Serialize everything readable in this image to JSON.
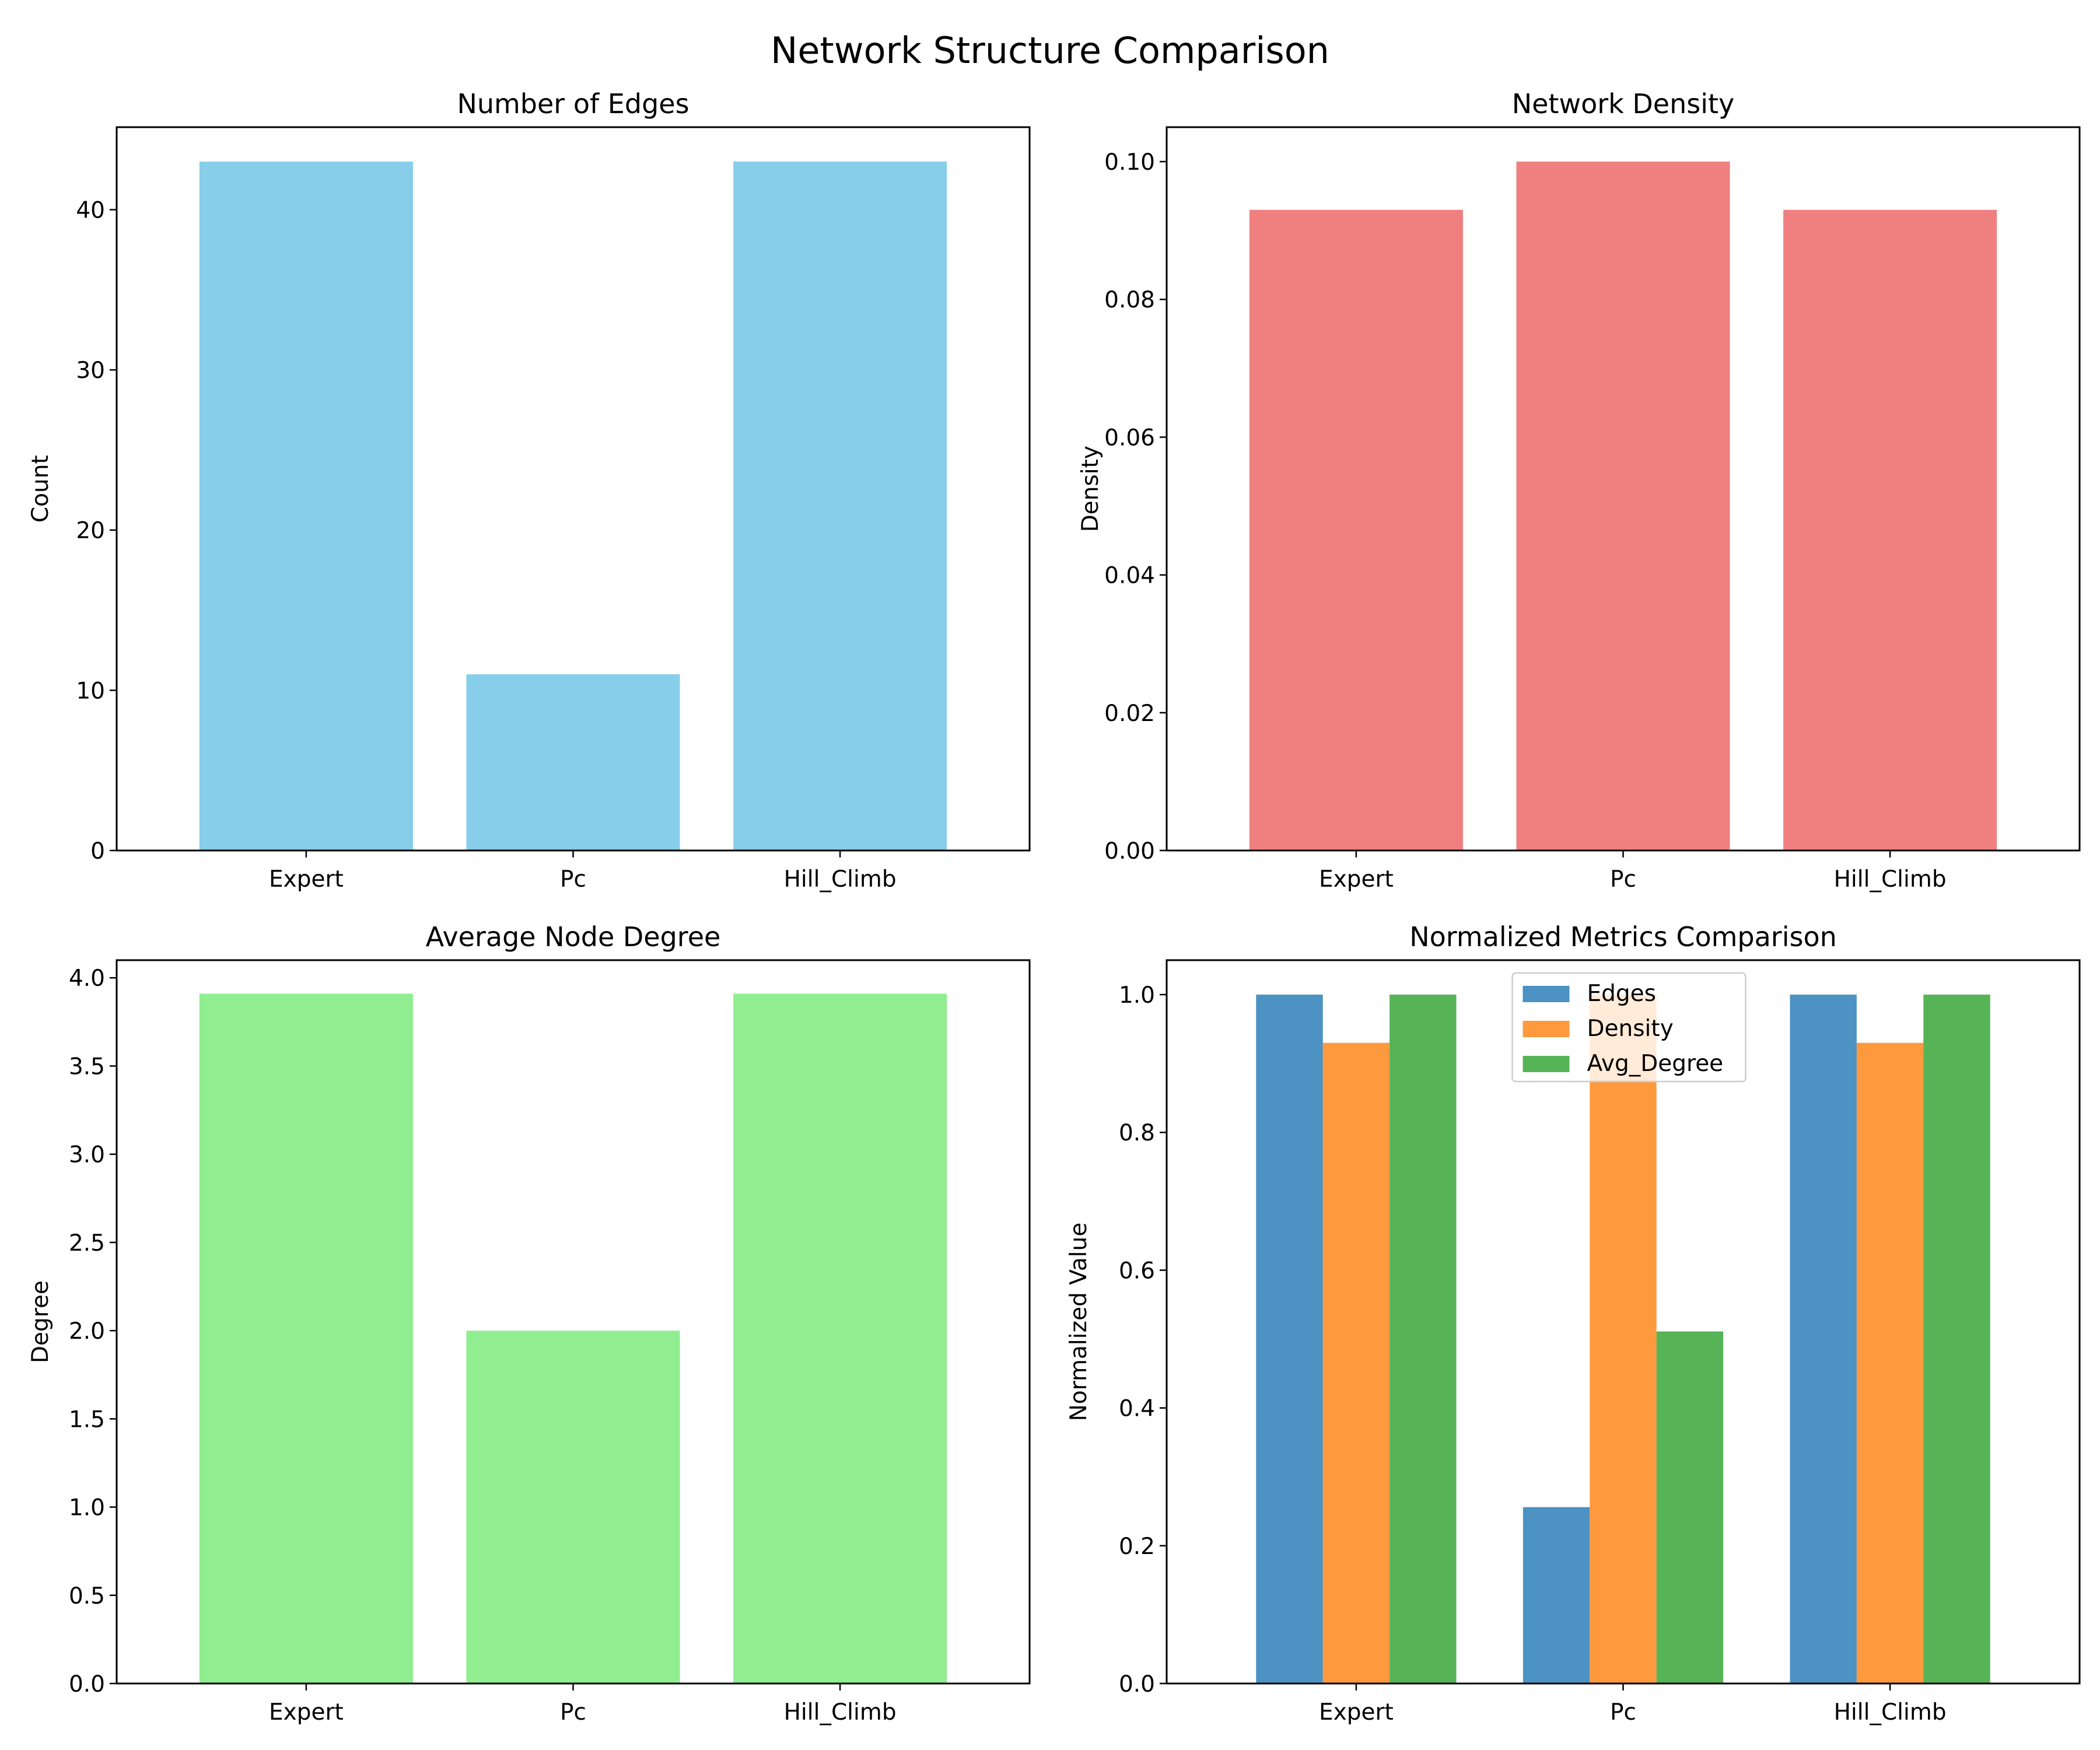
{
  "figure": {
    "title": "Network Structure Comparison"
  },
  "chart_data": [
    {
      "type": "bar",
      "title": "Number of Edges",
      "xlabel": "",
      "ylabel": "Count",
      "categories": [
        "Expert",
        "Pc",
        "Hill_Climb"
      ],
      "values": [
        43,
        11,
        43
      ],
      "ylim": [
        0,
        45.15
      ],
      "yticks": [
        0,
        10,
        20,
        30,
        40
      ],
      "ytick_labels": [
        "0",
        "10",
        "20",
        "30",
        "40"
      ],
      "color": "#87ceeb",
      "grid": false
    },
    {
      "type": "bar",
      "title": "Network Density",
      "xlabel": "",
      "ylabel": "Density",
      "categories": [
        "Expert",
        "Pc",
        "Hill_Climb"
      ],
      "values": [
        0.093,
        0.1,
        0.093
      ],
      "ylim": [
        0,
        0.105
      ],
      "yticks": [
        0,
        0.02,
        0.04,
        0.06,
        0.08,
        0.1
      ],
      "ytick_labels": [
        "0.00",
        "0.02",
        "0.04",
        "0.06",
        "0.08",
        "0.10"
      ],
      "color": "#f08080",
      "grid": false
    },
    {
      "type": "bar",
      "title": "Average Node Degree",
      "xlabel": "",
      "ylabel": "Degree",
      "categories": [
        "Expert",
        "Pc",
        "Hill_Climb"
      ],
      "values": [
        3.91,
        2.0,
        3.91
      ],
      "ylim": [
        0,
        4.1
      ],
      "yticks": [
        0,
        0.5,
        1,
        1.5,
        2,
        2.5,
        3,
        3.5,
        4
      ],
      "ytick_labels": [
        "0.0",
        "0.5",
        "1.0",
        "1.5",
        "2.0",
        "2.5",
        "3.0",
        "3.5",
        "4.0"
      ],
      "color": "#90ee90",
      "grid": false
    },
    {
      "type": "bar",
      "title": "Normalized Metrics Comparison",
      "xlabel": "",
      "ylabel": "Normalized Value",
      "categories": [
        "Expert",
        "Pc",
        "Hill_Climb"
      ],
      "series": [
        {
          "name": "Edges",
          "values": [
            1.0,
            0.256,
            1.0
          ],
          "color": "#1f77b4"
        },
        {
          "name": "Density",
          "values": [
            0.93,
            1.0,
            0.93
          ],
          "color": "#ff7f0e"
        },
        {
          "name": "Avg_Degree",
          "values": [
            1.0,
            0.511,
            1.0
          ],
          "color": "#2ca02c"
        }
      ],
      "ylim": [
        0,
        1.05
      ],
      "yticks": [
        0,
        0.2,
        0.4,
        0.6,
        0.8,
        1.0
      ],
      "ytick_labels": [
        "0.0",
        "0.2",
        "0.4",
        "0.6",
        "0.8",
        "1.0"
      ],
      "legend": "upper-center",
      "grid": false
    }
  ]
}
